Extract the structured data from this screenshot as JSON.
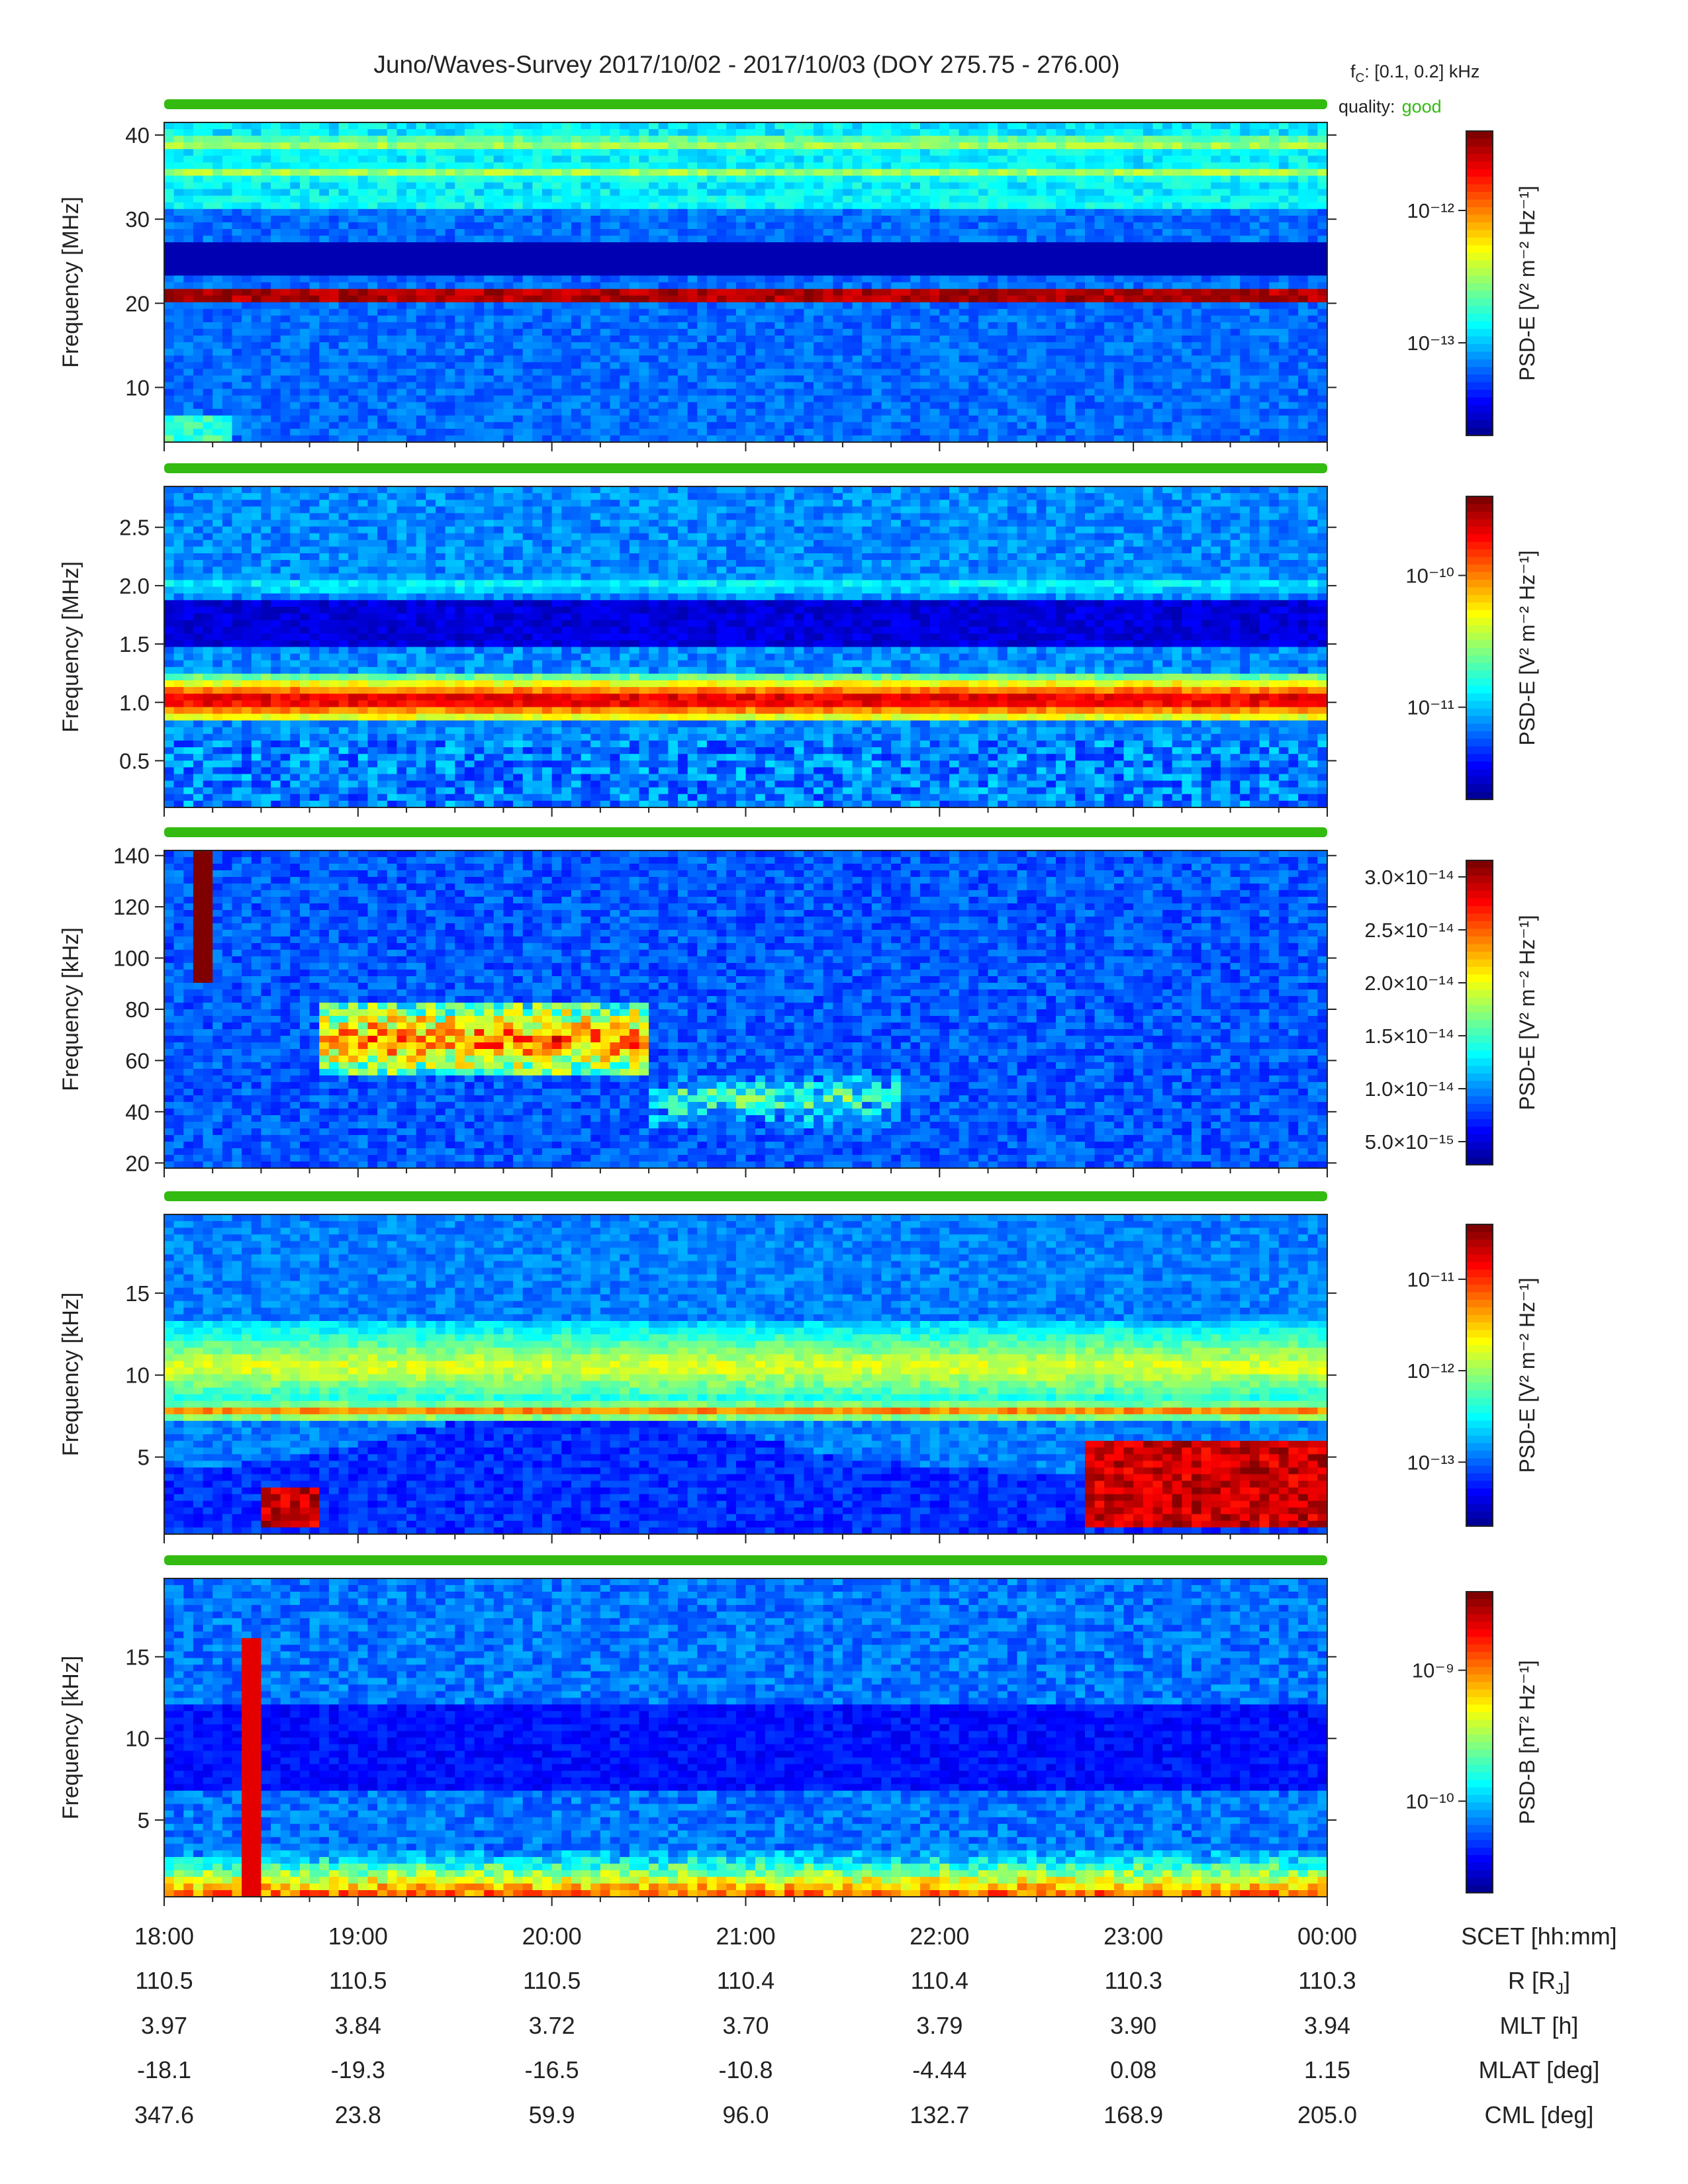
{
  "title": "Juno/Waves-Survey  2017/10/02 - 2017/10/03 (DOY 275.75 - 276.00)",
  "fc": {
    "prefix": "f",
    "sub": "C",
    "text": ": [0.1, 0.2] kHz"
  },
  "quality": {
    "label": "quality:",
    "value": "good",
    "color": "#33bb11"
  },
  "colors": {
    "quality_bar": "#33bb11",
    "line_red": "#c81800"
  },
  "chart_data": [
    {
      "type": "heatmap",
      "ylabel": "Frequency [MHz]",
      "ylim": [
        3.5,
        41.5
      ],
      "yticks": [
        10,
        20,
        30,
        40
      ],
      "ytick_labels": [
        "10",
        "20",
        "30",
        "40"
      ],
      "xlim_hours": [
        18,
        24
      ],
      "colorbar": {
        "label": "PSD-E [V² m⁻² Hz⁻¹]",
        "ticks": [
          "10⁻¹²",
          "10⁻¹³"
        ]
      },
      "features": [
        {
          "kind": "narrowband",
          "freq": 21.2,
          "level": 1.0
        },
        {
          "kind": "band",
          "freq": 35.5,
          "level": 0.55
        },
        {
          "kind": "band",
          "freq": 32.0,
          "level": 0.45
        },
        {
          "kind": "band",
          "freq": 39.0,
          "level": 0.6
        },
        {
          "kind": "burst",
          "t": [
            18.0,
            18.35
          ],
          "f": [
            3.5,
            7.0
          ],
          "level": 0.5
        }
      ]
    },
    {
      "type": "heatmap",
      "ylabel": "Frequency [MHz]",
      "ylim": [
        0.1,
        2.85
      ],
      "yticks": [
        0.5,
        1.0,
        1.5,
        2.0,
        2.5
      ],
      "ytick_labels": [
        "0.5",
        "1.0",
        "1.5",
        "2.0",
        "2.5"
      ],
      "xlim_hours": [
        18,
        24
      ],
      "colorbar": {
        "label": "PSD-E [V² m⁻² Hz⁻¹]",
        "ticks": [
          "10⁻¹⁰",
          "10⁻¹¹"
        ]
      },
      "features": [
        {
          "kind": "band",
          "freq": 1.02,
          "width": 0.2,
          "level": 0.95
        },
        {
          "kind": "band",
          "freq": 2.0,
          "width": 0.1,
          "level": 0.4
        },
        {
          "kind": "dark",
          "freq": 1.65,
          "width": 0.2
        }
      ]
    },
    {
      "type": "heatmap",
      "ylabel": "Frequency [kHz]",
      "ylim": [
        18,
        142
      ],
      "yticks": [
        20,
        40,
        60,
        80,
        100,
        120,
        140
      ],
      "ytick_labels": [
        "20",
        "40",
        "60",
        "80",
        "100",
        "120",
        "140"
      ],
      "xlim_hours": [
        18,
        24
      ],
      "colorbar": {
        "label": "PSD-E [V² m⁻² Hz⁻¹]",
        "ticks": [
          "3.0×10⁻¹⁴",
          "2.5×10⁻¹⁴",
          "2.0×10⁻¹⁴",
          "1.5×10⁻¹⁴",
          "1.0×10⁻¹⁴",
          "5.0×10⁻¹⁵"
        ],
        "linear": true
      },
      "features": [
        {
          "kind": "arc",
          "t": [
            18.8,
            20.5
          ],
          "freq": 68,
          "level": 0.95
        },
        {
          "kind": "arc",
          "t": [
            20.5,
            21.8
          ],
          "freq": 45,
          "level": 0.6
        },
        {
          "kind": "spike",
          "t": 18.2,
          "f": [
            90,
            142
          ],
          "level": 1.0
        }
      ]
    },
    {
      "type": "heatmap",
      "ylabel": "Frequency [kHz]",
      "ylim": [
        0.3,
        19.8
      ],
      "yticks": [
        5,
        10,
        15
      ],
      "ytick_labels": [
        "5",
        "10",
        "15"
      ],
      "xlim_hours": [
        18,
        24
      ],
      "colorbar": {
        "label": "PSD-E [V² m⁻² Hz⁻¹]",
        "ticks": [
          "10⁻¹¹",
          "10⁻¹²",
          "10⁻¹³"
        ]
      },
      "features": [
        {
          "kind": "band",
          "freq": 10.5,
          "width": 3.0,
          "level": 0.6
        },
        {
          "kind": "band",
          "freq": 7.8,
          "width": 0.6,
          "level": 0.75
        },
        {
          "kind": "block",
          "t": [
            18.5,
            18.8
          ],
          "f": [
            0.8,
            3.0
          ],
          "level": 1.0
        },
        {
          "kind": "block",
          "t": [
            22.75,
            24.0
          ],
          "f": [
            0.8,
            6.0
          ],
          "level": 1.0
        }
      ]
    },
    {
      "type": "heatmap",
      "ylabel": "Frequency [kHz]",
      "ylim": [
        0.3,
        19.8
      ],
      "yticks": [
        5,
        10,
        15
      ],
      "ytick_labels": [
        "5",
        "10",
        "15"
      ],
      "xlim_hours": [
        18,
        24
      ],
      "colorbar": {
        "label": "PSD-B [nT² Hz⁻¹]",
        "ticks": [
          "10⁻⁹",
          "10⁻¹⁰"
        ]
      },
      "features": [
        {
          "kind": "lowband",
          "f": [
            0.3,
            3.0
          ],
          "level": 0.9
        },
        {
          "kind": "spike",
          "t": 18.45,
          "f": [
            0.3,
            16.0
          ],
          "level": 0.9
        }
      ]
    }
  ],
  "xaxis": {
    "hours": [
      18,
      19,
      20,
      21,
      22,
      23,
      24
    ],
    "rows": [
      {
        "name": "SCET [hh:mm]",
        "values": [
          "18:00",
          "19:00",
          "20:00",
          "21:00",
          "22:00",
          "23:00",
          "00:00"
        ]
      },
      {
        "name": "R [R<sub>J</sub>]",
        "label": "R [RJ]",
        "values": [
          "110.5",
          "110.5",
          "110.5",
          "110.4",
          "110.4",
          "110.3",
          "110.3"
        ]
      },
      {
        "name": "MLT [h]",
        "values": [
          "3.97",
          "3.84",
          "3.72",
          "3.70",
          "3.79",
          "3.90",
          "3.94"
        ]
      },
      {
        "name": "MLAT [deg]",
        "values": [
          "-18.1",
          "-19.3",
          "-16.5",
          "-10.8",
          "-4.44",
          "0.08",
          "1.15"
        ]
      },
      {
        "name": "CML [deg]",
        "values": [
          "347.6",
          "23.8",
          "59.9",
          "96.0",
          "132.7",
          "168.9",
          "205.0"
        ]
      }
    ]
  }
}
